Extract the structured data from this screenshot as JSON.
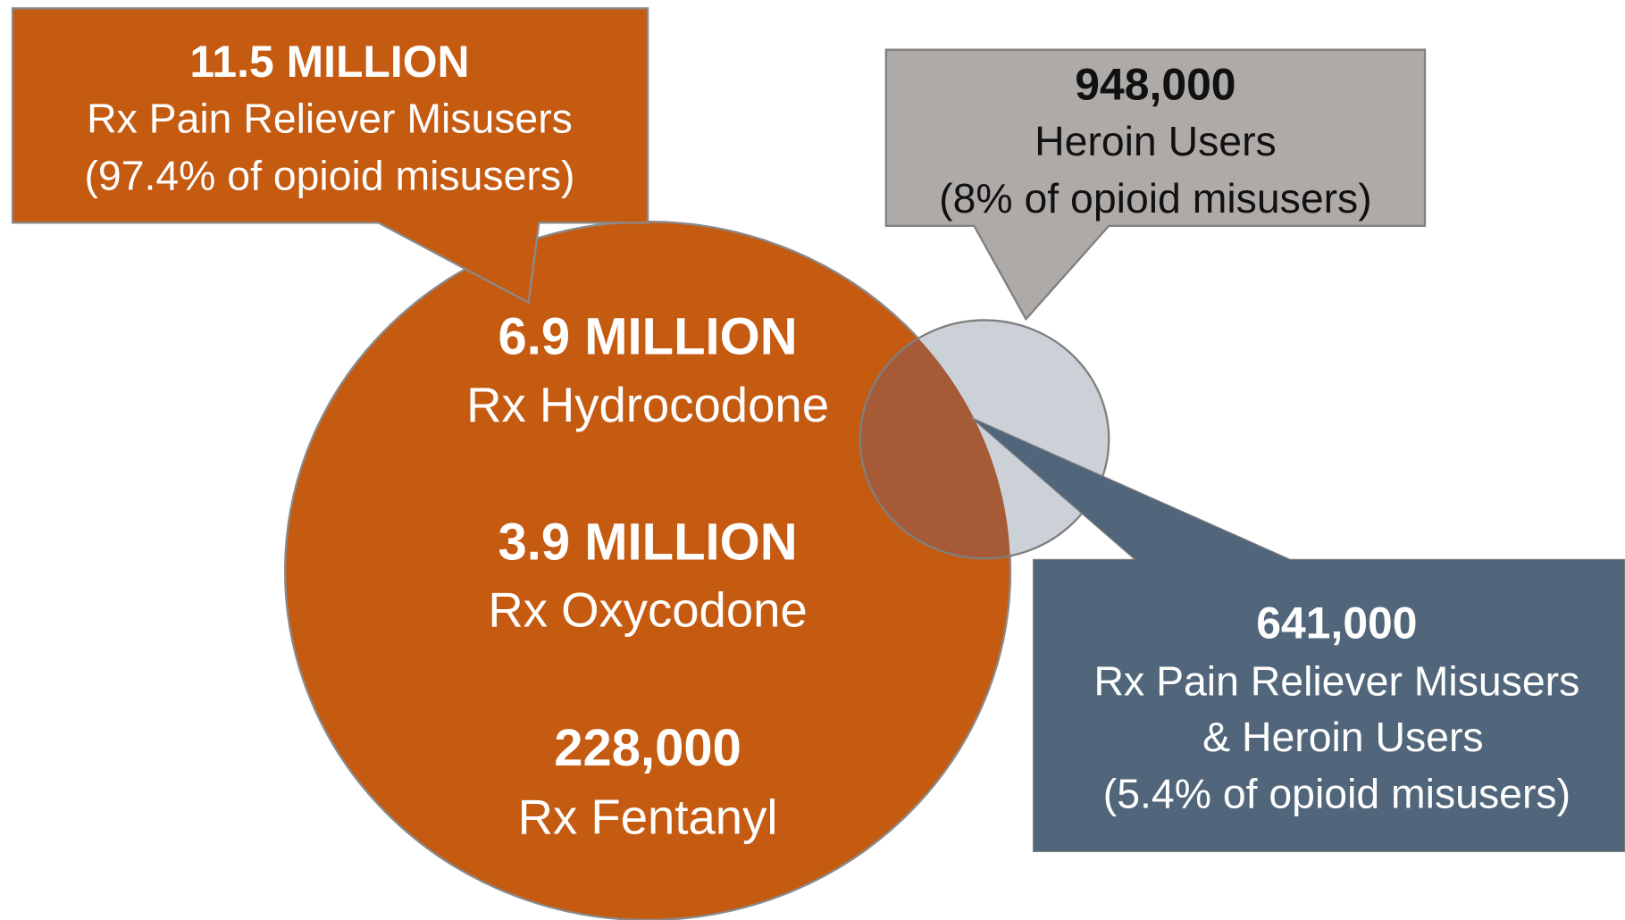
{
  "callouts": [
    {
      "heading": "11.5 MILLION",
      "lines": [
        "Rx Pain Reliever Misusers",
        "(97.4% of opioid misusers)"
      ]
    },
    {
      "heading": "948,000",
      "lines": [
        "Heroin Users",
        "(8% of opioid misusers)"
      ]
    },
    {
      "heading": "641,000",
      "lines": [
        "Rx Pain Reliever Misusers",
        "& Heroin Users",
        "(5.4% of opioid misusers)"
      ]
    }
  ],
  "circle_labels": [
    {
      "heading": "6.9 MILLION",
      "label": "Rx Hydrocodone"
    },
    {
      "heading": "3.9 MILLION",
      "label": "Rx Oxycodone"
    },
    {
      "heading": "228,000",
      "label": "Rx Fentanyl"
    }
  ]
}
